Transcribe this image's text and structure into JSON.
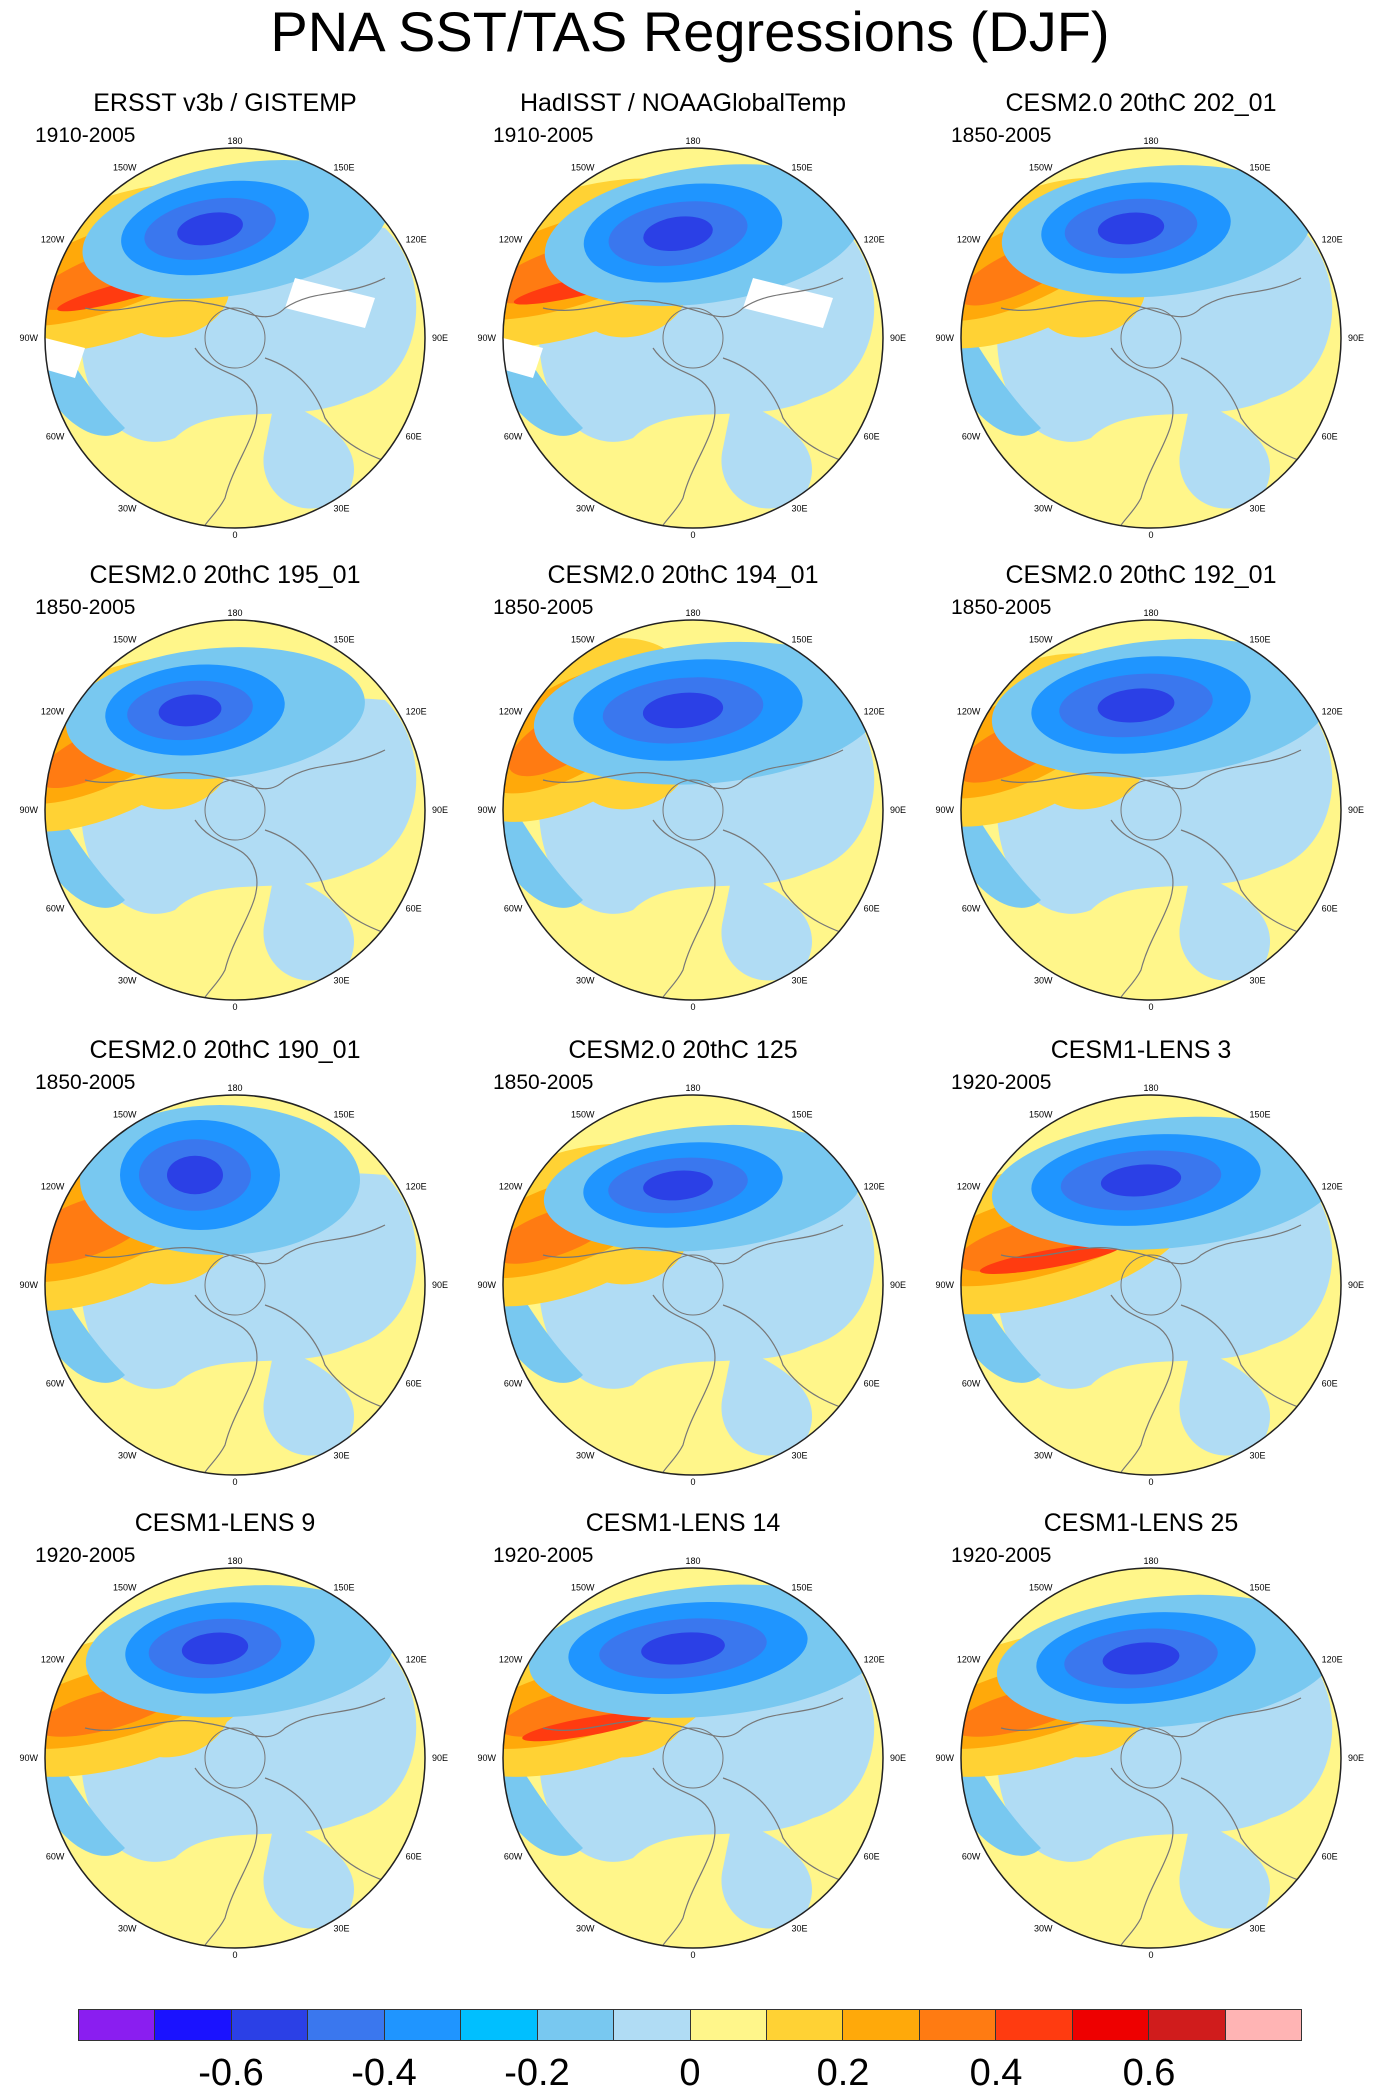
{
  "title": "PNA SST/TAS Regressions (DJF)",
  "lon_labels": [
    "180",
    "150E",
    "120E",
    "90E",
    "60E",
    "30E",
    "0",
    "30W",
    "60W",
    "90W",
    "120W",
    "150W"
  ],
  "panels": [
    {
      "title": "ERSST v3b / GISTEMP",
      "period": "1910-2005"
    },
    {
      "title": "HadISST / NOAAGlobalTemp",
      "period": "1910-2005"
    },
    {
      "title": "CESM2.0 20thC 202_01",
      "period": "1850-2005"
    },
    {
      "title": "CESM2.0 20thC 195_01",
      "period": "1850-2005"
    },
    {
      "title": "CESM2.0 20thC 194_01",
      "period": "1850-2005"
    },
    {
      "title": "CESM2.0 20thC 192_01",
      "period": "1850-2005"
    },
    {
      "title": "CESM2.0 20thC 190_01",
      "period": "1850-2005"
    },
    {
      "title": "CESM2.0 20thC 125",
      "period": "1850-2005"
    },
    {
      "title": "CESM1-LENS 3",
      "period": "1920-2005"
    },
    {
      "title": "CESM1-LENS 9",
      "period": "1920-2005"
    },
    {
      "title": "CESM1-LENS 14",
      "period": "1920-2005"
    },
    {
      "title": "CESM1-LENS 25",
      "period": "1920-2005"
    }
  ],
  "colorbar": {
    "colors": [
      "#8a1ef0",
      "#1a12ff",
      "#2b40e6",
      "#3a77ee",
      "#1f95ff",
      "#00bfff",
      "#78c8f0",
      "#b0dcf4",
      "#fff68a",
      "#ffd234",
      "#ffa90a",
      "#ff7b12",
      "#ff3b10",
      "#ee0000",
      "#d01c1c",
      "#ffb4b4"
    ],
    "labels": [
      "-0.6",
      "-0.4",
      "-0.2",
      "0",
      "0.2",
      "0.4",
      "0.6"
    ]
  },
  "palette": {
    "warm_light": "#fff68a",
    "warm_mid": "#ffd234",
    "warm_strong": "#ffa90a",
    "warm_deep": "#ff7b12",
    "cold_light": "#b0dcf4",
    "cold_mid": "#78c8f0",
    "cold_strong": "#3a77ee",
    "cold_deep": "#2b40e6"
  }
}
